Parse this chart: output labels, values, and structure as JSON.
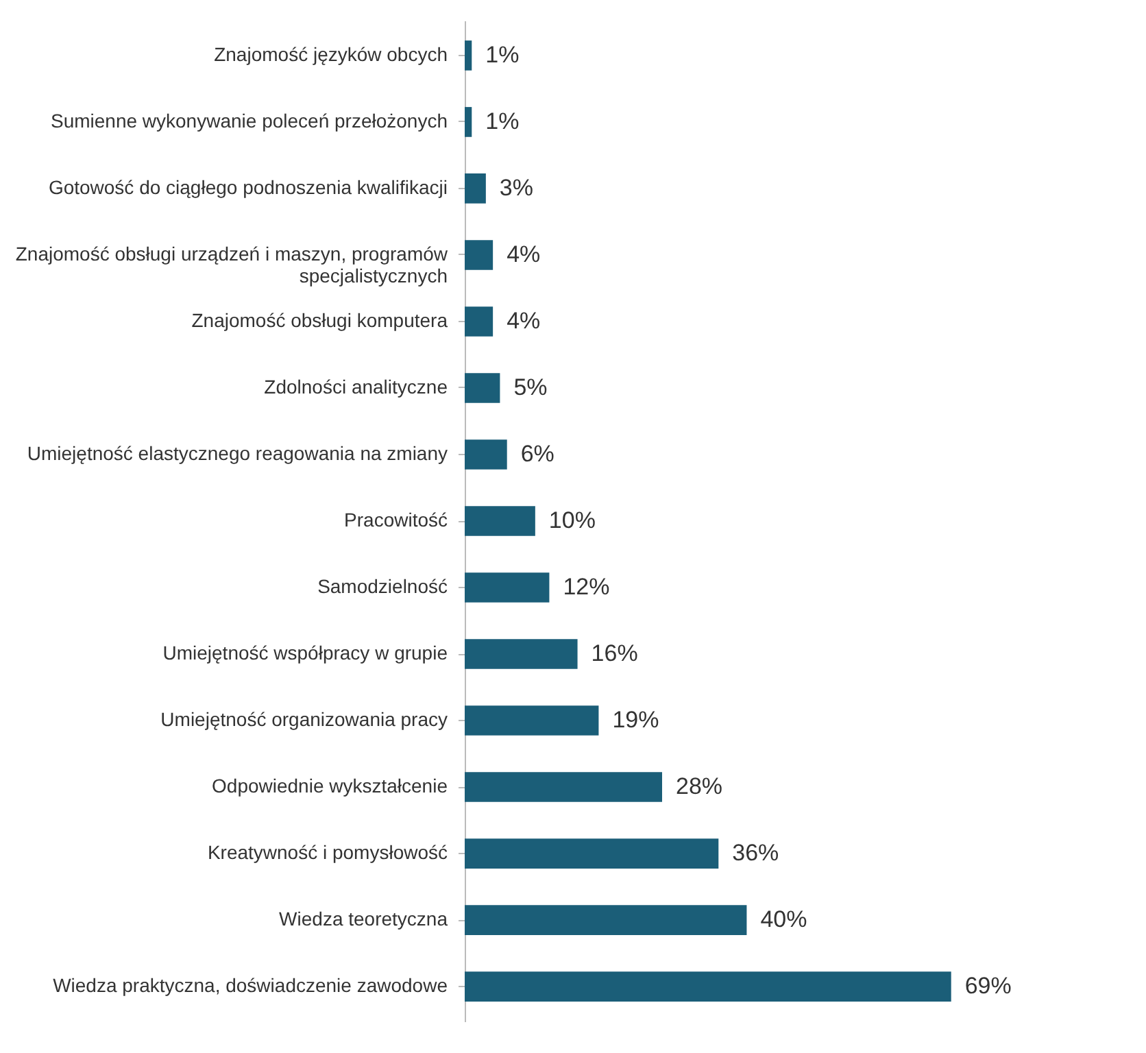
{
  "chart_data": {
    "type": "bar",
    "orientation": "horizontal",
    "categories": [
      "Znajomość języków obcych",
      "Sumienne wykonywanie poleceń przełożonych",
      "Gotowość do ciągłego podnoszenia kwalifikacji",
      "Znajomość obsługi urządzeń i maszyn, programów specjalistycznych",
      "Znajomość obsługi komputera",
      "Zdolności analityczne",
      "Umiejętność elastycznego reagowania na zmiany",
      "Pracowitość",
      "Samodzielność",
      "Umiejętność współpracy w grupie",
      "Umiejętność organizowania pracy",
      "Odpowiednie wykształcenie",
      "Kreatywność i pomysłowość",
      "Wiedza teoretyczna",
      "Wiedza praktyczna, doświadczenie zawodowe"
    ],
    "values": [
      1,
      1,
      3,
      4,
      4,
      5,
      6,
      10,
      12,
      16,
      19,
      28,
      36,
      40,
      69
    ],
    "value_labels": [
      "1%",
      "1%",
      "3%",
      "4%",
      "4%",
      "5%",
      "6%",
      "10%",
      "12%",
      "16%",
      "19%",
      "28%",
      "36%",
      "40%",
      "69%"
    ],
    "color": "#1b5e78"
  }
}
